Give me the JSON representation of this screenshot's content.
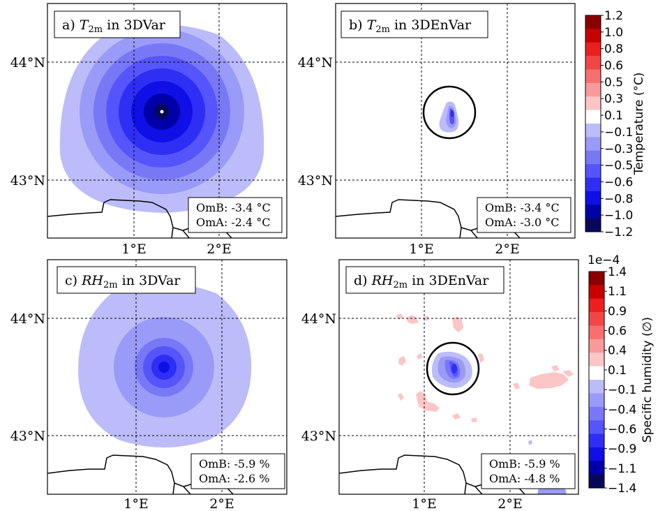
{
  "figure": {
    "colors": {
      "levels_temp": [
        "#08085a",
        "#0000a8",
        "#0f0fe6",
        "#2e2ef5",
        "#5555fb",
        "#7878f7",
        "#9a9af8",
        "#bcbcfa",
        "#ffffff",
        "#fcc6c6",
        "#f99a9a",
        "#f67070",
        "#f24646",
        "#ec1f1f",
        "#c80000",
        "#8a0000"
      ],
      "ocean": "#ffffff",
      "coast": "#000000",
      "grid": "#000000"
    },
    "colorbars": [
      {
        "name": "temperature",
        "label": "Temperature (°C)",
        "offset_text": "",
        "ticks": [
          "1.2",
          "1.0",
          "0.8",
          "0.6",
          "0.5",
          "0.3",
          "0.1",
          "-0.1",
          "-0.3",
          "-0.5",
          "-0.6",
          "-0.8",
          "-1.0",
          "-1.2"
        ]
      },
      {
        "name": "humidity",
        "label": "Specific humidity (∅)",
        "offset_text": "1e−4",
        "ticks": [
          "1.4",
          "1.1",
          "0.9",
          "0.6",
          "0.4",
          "0.1",
          "-0.1",
          "-0.4",
          "-0.6",
          "-0.9",
          "-1.1",
          "-1.4"
        ]
      }
    ]
  },
  "chart_data": [
    {
      "type": "heatmap",
      "panel": "a",
      "title_prefix": "a)",
      "title_var": "T",
      "title_sub": "2m",
      "title_suffix": "in 3DVar",
      "xticks": [
        "1°E",
        "2°E"
      ],
      "yticks": [
        "44°N",
        "43°N"
      ],
      "stats": [
        "OmB: -3.4 °C",
        "OmA: -2.4 °C"
      ],
      "increment_center": {
        "lon": 1.33,
        "lat": 43.58
      },
      "min_value": -1.2,
      "circle": false
    },
    {
      "type": "heatmap",
      "panel": "b",
      "title_prefix": "b)",
      "title_var": "T",
      "title_sub": "2m",
      "title_suffix": "in 3DEnVar",
      "xticks": [
        "1°E",
        "2°E"
      ],
      "yticks": [
        "44°N",
        "43°N"
      ],
      "stats": [
        "OmB: -3.4 °C",
        "OmA: -3.0 °C"
      ],
      "increment_center": {
        "lon": 1.36,
        "lat": 43.58
      },
      "min_value": -0.6,
      "circle": true
    },
    {
      "type": "heatmap",
      "panel": "c",
      "title_prefix": "c)",
      "title_var": "RH",
      "title_sub": "2m",
      "title_suffix": "in 3DVar",
      "xticks": [
        "1°E",
        "2°E"
      ],
      "yticks": [
        "44°N",
        "43°N"
      ],
      "stats": [
        "OmB: -5.9 %",
        "OmA: -2.6 %"
      ],
      "increment_center": {
        "lon": 1.33,
        "lat": 43.58
      },
      "min_value": -0.9,
      "circle": false
    },
    {
      "type": "heatmap",
      "panel": "d",
      "title_prefix": "d)",
      "title_var": "RH",
      "title_sub": "2m",
      "title_suffix": "in 3DEnVar",
      "xticks": [
        "1°E",
        "2°E"
      ],
      "yticks": [
        "44°N",
        "43°N"
      ],
      "stats": [
        "OmB: -5.9 %",
        "OmA: -4.8 %"
      ],
      "increment_center": {
        "lon": 1.36,
        "lat": 43.58
      },
      "min_value": -0.9,
      "circle": true
    }
  ]
}
